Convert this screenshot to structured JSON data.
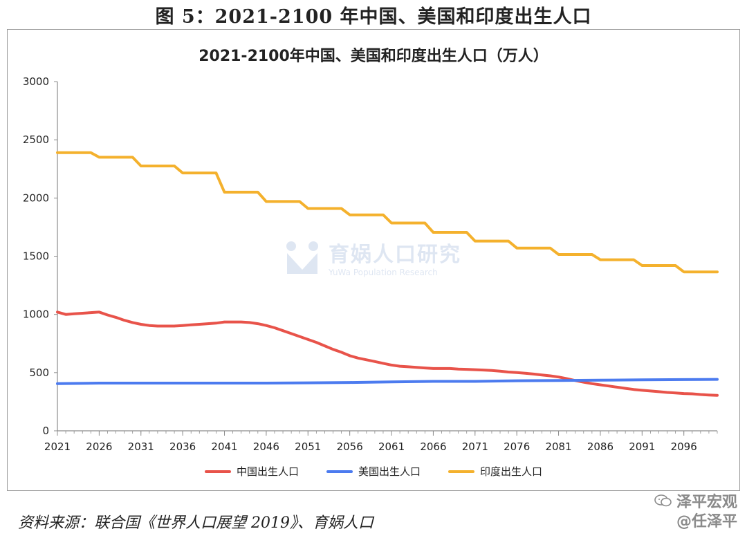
{
  "figure_title": "图 5：2021-2100 年中国、美国和印度出生人口",
  "source_note": "资料来源：联合国《世界人口展望 2019》、育娲人口",
  "watermark": {
    "name": "育娲人口研究",
    "subtitle": "YuWa Population Research"
  },
  "brand": {
    "line1": "泽平宏观",
    "line2": "@任泽平"
  },
  "chart_data": {
    "type": "line",
    "title": "2021-2100年中国、美国和印度出生人口（万人）",
    "xlabel": "",
    "ylabel": "",
    "xlim": [
      2021,
      2100
    ],
    "ylim": [
      0,
      3000
    ],
    "x_ticks": [
      2021,
      2026,
      2031,
      2036,
      2041,
      2046,
      2051,
      2056,
      2061,
      2066,
      2071,
      2076,
      2081,
      2086,
      2091,
      2096
    ],
    "y_ticks": [
      0,
      500,
      1000,
      1500,
      2000,
      2500,
      3000
    ],
    "grid": false,
    "legend_position": "bottom",
    "series": [
      {
        "name": "中国出生人口",
        "color": "#e8534a",
        "x": [
          2021,
          2022,
          2023,
          2024,
          2025,
          2026,
          2027,
          2028,
          2029,
          2030,
          2031,
          2032,
          2033,
          2034,
          2035,
          2036,
          2037,
          2038,
          2039,
          2040,
          2041,
          2042,
          2043,
          2044,
          2045,
          2046,
          2047,
          2048,
          2049,
          2050,
          2051,
          2052,
          2053,
          2054,
          2055,
          2056,
          2057,
          2058,
          2059,
          2060,
          2061,
          2062,
          2063,
          2064,
          2065,
          2066,
          2067,
          2068,
          2069,
          2070,
          2071,
          2072,
          2073,
          2074,
          2075,
          2076,
          2077,
          2078,
          2079,
          2080,
          2081,
          2082,
          2083,
          2084,
          2085,
          2086,
          2087,
          2088,
          2089,
          2090,
          2091,
          2092,
          2093,
          2094,
          2095,
          2096,
          2097,
          2098,
          2099,
          2100
        ],
        "values": [
          1020,
          1000,
          1005,
          1010,
          1015,
          1020,
          995,
          975,
          950,
          930,
          915,
          905,
          900,
          900,
          900,
          905,
          910,
          915,
          920,
          925,
          935,
          935,
          935,
          930,
          920,
          905,
          885,
          860,
          835,
          810,
          785,
          760,
          730,
          700,
          675,
          645,
          625,
          610,
          595,
          580,
          565,
          555,
          550,
          545,
          540,
          535,
          535,
          535,
          530,
          528,
          525,
          522,
          518,
          512,
          505,
          500,
          495,
          488,
          480,
          472,
          462,
          448,
          432,
          418,
          405,
          395,
          385,
          375,
          365,
          355,
          348,
          342,
          336,
          330,
          325,
          320,
          318,
          312,
          308,
          305
        ]
      },
      {
        "name": "美国出生人口",
        "color": "#4c7bef",
        "x": [
          2021,
          2026,
          2031,
          2036,
          2041,
          2046,
          2051,
          2056,
          2061,
          2066,
          2071,
          2076,
          2081,
          2086,
          2091,
          2096,
          2100
        ],
        "values": [
          405,
          410,
          410,
          410,
          410,
          410,
          412,
          415,
          420,
          425,
          425,
          430,
          432,
          435,
          438,
          440,
          442
        ]
      },
      {
        "name": "印度出生人口",
        "color": "#f4b12d",
        "x": [
          2021,
          2026,
          2031,
          2036,
          2041,
          2046,
          2051,
          2056,
          2061,
          2066,
          2071,
          2076,
          2081,
          2086,
          2091,
          2096
        ],
        "values": [
          2390,
          2350,
          2275,
          2215,
          2050,
          1970,
          1910,
          1855,
          1785,
          1705,
          1630,
          1570,
          1515,
          1470,
          1420,
          1365
        ],
        "step_length": 5,
        "end_year": 2100
      }
    ]
  }
}
